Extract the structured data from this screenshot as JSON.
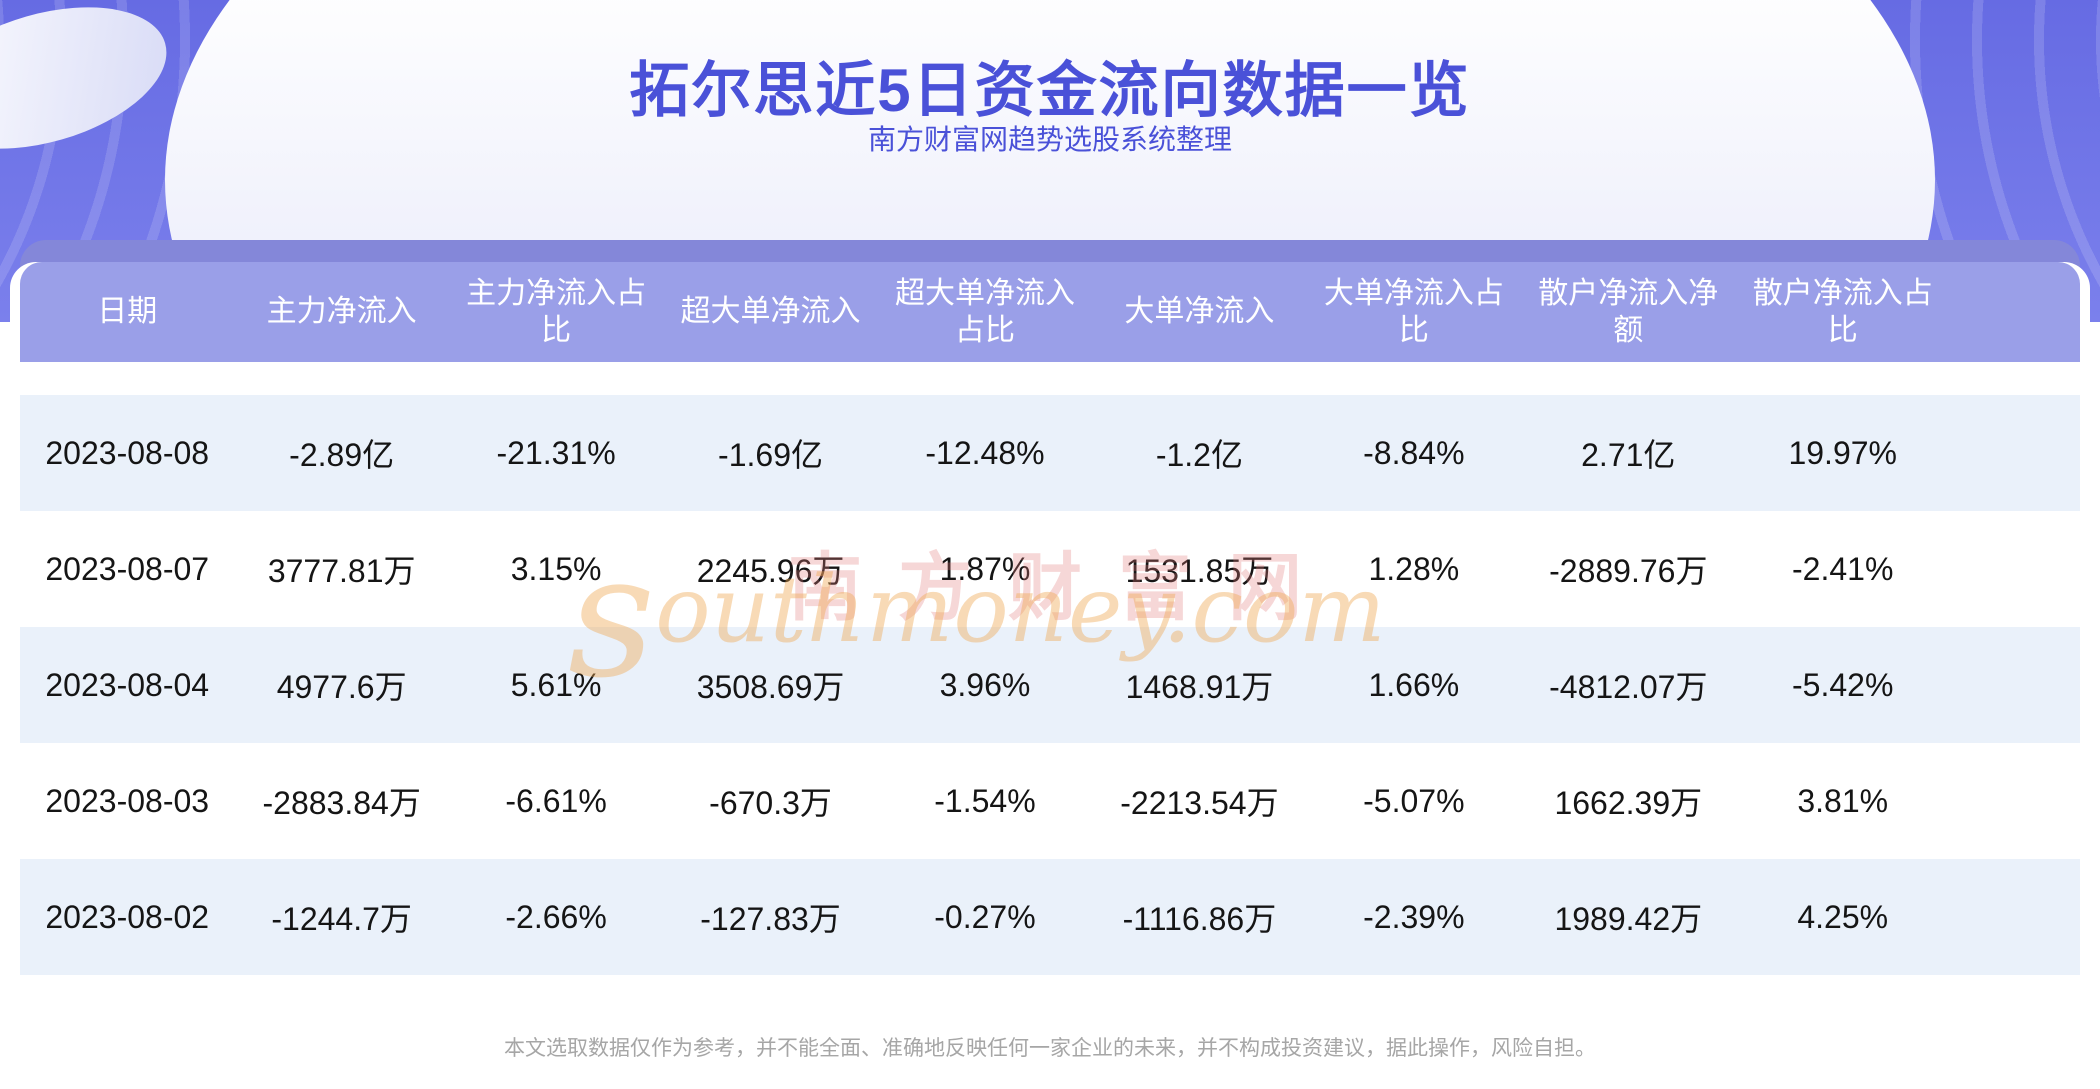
{
  "page": {
    "disclaimer": "本文选取数据仅作为参考，并不能全面、准确地反映任何一家企业的未来，并不构成投资建议，据此操作，风险自担。"
  },
  "watermark": {
    "cn": "南方财富网",
    "en_initial": "s",
    "en_rest": "outhmoney.com"
  },
  "colors": {
    "accent": "#4a51d8",
    "banner_top": "#666be3",
    "banner_bottom": "#7b80ec",
    "band_purple": "#8487d9",
    "header_purple": "#9a9fe8",
    "row_alt": "#eaf1fa",
    "text_dark": "#151515",
    "footer_gray": "#a6a6a6"
  },
  "chart_data": {
    "type": "table",
    "title": "拓尔思近5日资金流向数据一览",
    "subtitle": "南方财富网趋势选股系统整理",
    "columns": [
      "日期",
      "主力净流入",
      "主力净流入占比",
      "超大单净流入",
      "超大单净流入占比",
      "大单净流入",
      "大单净流入占比",
      "散户净流入净额",
      "散户净流入占比"
    ],
    "column_display": [
      "日期",
      "主力净流入",
      "主力净流入占\n比",
      "超大单净流入",
      "超大单净流入\n占比",
      "大单净流入",
      "大单净流入占\n比",
      "散户净流入净\n额",
      "散户净流入占\n比"
    ],
    "rows": [
      [
        "2023-08-08",
        "-2.89亿",
        "-21.31%",
        "-1.69亿",
        "-12.48%",
        "-1.2亿",
        "-8.84%",
        "2.71亿",
        "19.97%"
      ],
      [
        "2023-08-07",
        "3777.81万",
        "3.15%",
        "2245.96万",
        "1.87%",
        "1531.85万",
        "1.28%",
        "-2889.76万",
        "-2.41%"
      ],
      [
        "2023-08-04",
        "4977.6万",
        "5.61%",
        "3508.69万",
        "3.96%",
        "1468.91万",
        "1.66%",
        "-4812.07万",
        "-5.42%"
      ],
      [
        "2023-08-03",
        "-2883.84万",
        "-6.61%",
        "-670.3万",
        "-1.54%",
        "-2213.54万",
        "-5.07%",
        "1662.39万",
        "3.81%"
      ],
      [
        "2023-08-02",
        "-1244.7万",
        "-2.66%",
        "-127.83万",
        "-0.27%",
        "-1116.86万",
        "-2.39%",
        "1989.42万",
        "4.25%"
      ]
    ]
  }
}
